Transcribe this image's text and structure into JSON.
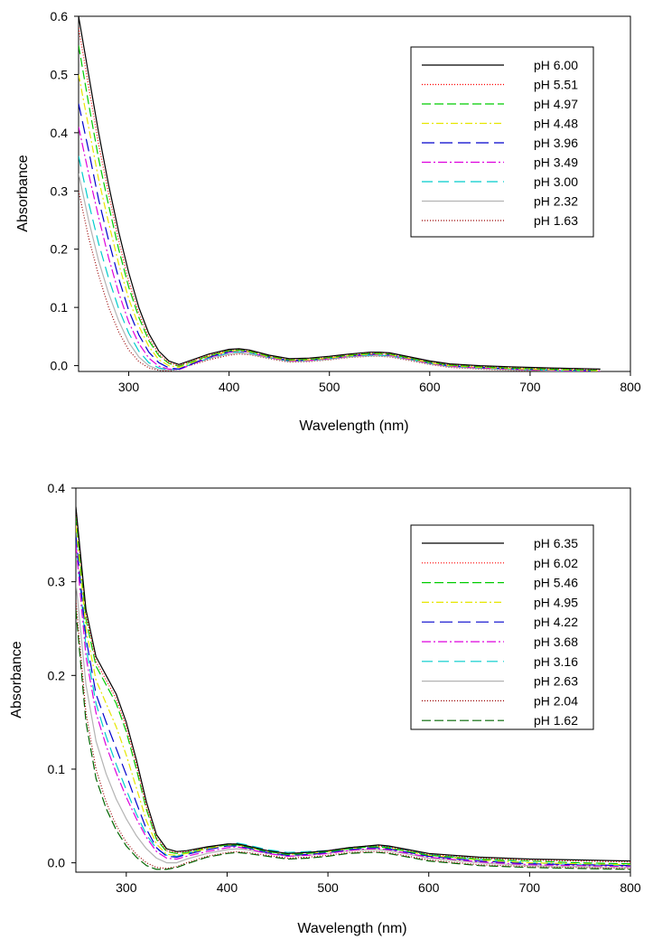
{
  "chart_data": [
    {
      "type": "line",
      "title": "",
      "xlabel": "Wavelength (nm)",
      "ylabel": "Absorbance",
      "xlim": [
        250,
        800
      ],
      "ylim": [
        -0.01,
        0.6
      ],
      "xticks": [
        300,
        400,
        500,
        600,
        700,
        800
      ],
      "yticks": [
        0.0,
        0.1,
        0.2,
        0.3,
        0.4,
        0.5,
        0.6
      ],
      "ytick_labels": [
        "0.0",
        "0.1",
        "0.2",
        "0.3",
        "0.4",
        "0.5",
        "0.6"
      ],
      "legend_position": "top-right",
      "x": [
        250,
        260,
        270,
        280,
        290,
        300,
        310,
        320,
        330,
        340,
        350,
        360,
        380,
        400,
        410,
        420,
        440,
        460,
        480,
        500,
        520,
        540,
        550,
        560,
        580,
        600,
        620,
        650,
        680,
        700,
        720,
        750,
        770
      ],
      "series": [
        {
          "name": "pH 6.00",
          "color": "#000000",
          "dash": "solid",
          "values": [
            0.6,
            0.5,
            0.4,
            0.31,
            0.23,
            0.16,
            0.1,
            0.055,
            0.025,
            0.008,
            0.002,
            0.008,
            0.02,
            0.028,
            0.029,
            0.027,
            0.018,
            0.012,
            0.013,
            0.016,
            0.02,
            0.023,
            0.023,
            0.022,
            0.015,
            0.008,
            0.003,
            0.0,
            -0.002,
            -0.003,
            -0.004,
            -0.005,
            -0.006
          ]
        },
        {
          "name": "pH 5.51",
          "color": "#ff0000",
          "dash": "1,2",
          "values": [
            0.58,
            0.48,
            0.38,
            0.295,
            0.215,
            0.145,
            0.09,
            0.048,
            0.02,
            0.005,
            0.0,
            0.006,
            0.018,
            0.027,
            0.028,
            0.026,
            0.017,
            0.011,
            0.012,
            0.015,
            0.019,
            0.022,
            0.022,
            0.021,
            0.014,
            0.007,
            0.002,
            -0.001,
            -0.003,
            -0.004,
            -0.005,
            -0.006,
            -0.007
          ]
        },
        {
          "name": "pH 4.97",
          "color": "#00cc00",
          "dash": "10,4",
          "values": [
            0.55,
            0.45,
            0.355,
            0.275,
            0.2,
            0.135,
            0.083,
            0.043,
            0.017,
            0.004,
            -0.001,
            0.005,
            0.017,
            0.026,
            0.027,
            0.025,
            0.016,
            0.01,
            0.011,
            0.014,
            0.018,
            0.021,
            0.021,
            0.02,
            0.013,
            0.006,
            0.001,
            -0.002,
            -0.004,
            -0.005,
            -0.006,
            -0.007,
            -0.008
          ]
        },
        {
          "name": "pH 4.48",
          "color": "#e6e600",
          "dash": "8,3,2,3",
          "values": [
            0.5,
            0.41,
            0.32,
            0.245,
            0.175,
            0.115,
            0.068,
            0.033,
            0.01,
            0.0,
            -0.003,
            0.003,
            0.016,
            0.025,
            0.026,
            0.024,
            0.015,
            0.009,
            0.01,
            0.013,
            0.017,
            0.02,
            0.02,
            0.019,
            0.012,
            0.005,
            0.0,
            -0.003,
            -0.005,
            -0.006,
            -0.007,
            -0.008,
            -0.009
          ]
        },
        {
          "name": "pH 3.96",
          "color": "#0000cc",
          "dash": "14,6",
          "values": [
            0.45,
            0.37,
            0.285,
            0.215,
            0.15,
            0.095,
            0.053,
            0.023,
            0.005,
            -0.004,
            -0.006,
            0.001,
            0.015,
            0.024,
            0.026,
            0.024,
            0.015,
            0.009,
            0.01,
            0.013,
            0.017,
            0.02,
            0.02,
            0.019,
            0.012,
            0.005,
            0.0,
            -0.003,
            -0.005,
            -0.006,
            -0.007,
            -0.008,
            -0.009
          ]
        },
        {
          "name": "pH 3.49",
          "color": "#dd00dd",
          "dash": "10,3,2,3",
          "values": [
            0.41,
            0.33,
            0.255,
            0.185,
            0.125,
            0.075,
            0.038,
            0.013,
            -0.001,
            -0.006,
            -0.007,
            0.0,
            0.014,
            0.023,
            0.025,
            0.023,
            0.014,
            0.008,
            0.009,
            0.012,
            0.016,
            0.019,
            0.019,
            0.018,
            0.011,
            0.004,
            -0.001,
            -0.004,
            -0.006,
            -0.007,
            -0.008,
            -0.009,
            -0.01
          ]
        },
        {
          "name": "pH 3.00",
          "color": "#00cccc",
          "dash": "12,6",
          "values": [
            0.36,
            0.28,
            0.21,
            0.15,
            0.098,
            0.056,
            0.025,
            0.005,
            -0.004,
            -0.007,
            -0.006,
            0.001,
            0.013,
            0.022,
            0.024,
            0.022,
            0.014,
            0.008,
            0.009,
            0.012,
            0.016,
            0.018,
            0.018,
            0.017,
            0.011,
            0.004,
            -0.001,
            -0.004,
            -0.006,
            -0.007,
            -0.008,
            -0.009,
            -0.01
          ]
        },
        {
          "name": "pH 2.32",
          "color": "#b3b3b3",
          "dash": "solid",
          "values": [
            0.33,
            0.25,
            0.18,
            0.124,
            0.077,
            0.04,
            0.015,
            0.0,
            -0.007,
            -0.008,
            -0.006,
            0.001,
            0.012,
            0.02,
            0.022,
            0.02,
            0.013,
            0.007,
            0.008,
            0.011,
            0.015,
            0.017,
            0.017,
            0.016,
            0.01,
            0.003,
            -0.002,
            -0.005,
            -0.007,
            -0.008,
            -0.009,
            -0.01,
            -0.01
          ]
        },
        {
          "name": "pH 1.63",
          "color": "#990000",
          "dash": "1,2",
          "values": [
            0.3,
            0.22,
            0.155,
            0.1,
            0.058,
            0.027,
            0.007,
            -0.004,
            -0.008,
            -0.009,
            -0.006,
            0.0,
            0.01,
            0.018,
            0.02,
            0.019,
            0.012,
            0.006,
            0.007,
            0.01,
            0.014,
            0.016,
            0.016,
            0.015,
            0.009,
            0.002,
            -0.003,
            -0.006,
            -0.008,
            -0.009,
            -0.01,
            -0.01,
            -0.01
          ]
        }
      ]
    },
    {
      "type": "line",
      "title": "",
      "xlabel": "Wavelength (nm)",
      "ylabel": "Absorbance",
      "xlim": [
        250,
        800
      ],
      "ylim": [
        -0.01,
        0.4
      ],
      "xticks": [
        300,
        400,
        500,
        600,
        700,
        800
      ],
      "yticks": [
        0.0,
        0.1,
        0.2,
        0.3,
        0.4
      ],
      "ytick_labels": [
        "0.0",
        "0.1",
        "0.2",
        "0.3",
        "0.4"
      ],
      "legend_position": "top-right",
      "x": [
        250,
        260,
        270,
        280,
        290,
        300,
        310,
        320,
        330,
        340,
        350,
        360,
        380,
        400,
        410,
        420,
        440,
        460,
        480,
        500,
        520,
        540,
        550,
        560,
        580,
        600,
        650,
        700,
        750,
        800
      ],
      "series": [
        {
          "name": "pH 6.35",
          "color": "#000000",
          "dash": "solid",
          "values": [
            0.38,
            0.27,
            0.22,
            0.2,
            0.18,
            0.15,
            0.11,
            0.065,
            0.03,
            0.015,
            0.012,
            0.013,
            0.017,
            0.02,
            0.02,
            0.018,
            0.013,
            0.01,
            0.011,
            0.013,
            0.016,
            0.018,
            0.019,
            0.018,
            0.014,
            0.01,
            0.006,
            0.004,
            0.003,
            0.002
          ]
        },
        {
          "name": "pH 6.02",
          "color": "#ff0000",
          "dash": "1,2",
          "values": [
            0.375,
            0.265,
            0.215,
            0.195,
            0.175,
            0.145,
            0.105,
            0.06,
            0.027,
            0.013,
            0.011,
            0.012,
            0.016,
            0.02,
            0.02,
            0.018,
            0.013,
            0.01,
            0.011,
            0.013,
            0.016,
            0.018,
            0.018,
            0.017,
            0.013,
            0.009,
            0.005,
            0.003,
            0.002,
            0.001
          ]
        },
        {
          "name": "pH 5.46",
          "color": "#00cc00",
          "dash": "10,4",
          "values": [
            0.37,
            0.26,
            0.21,
            0.19,
            0.17,
            0.14,
            0.1,
            0.057,
            0.025,
            0.012,
            0.01,
            0.011,
            0.016,
            0.019,
            0.019,
            0.017,
            0.012,
            0.009,
            0.01,
            0.012,
            0.015,
            0.017,
            0.017,
            0.016,
            0.012,
            0.008,
            0.004,
            0.002,
            0.0,
            -0.001
          ]
        },
        {
          "name": "pH 4.95",
          "color": "#e6e600",
          "dash": "8,3,2,3",
          "values": [
            0.36,
            0.25,
            0.195,
            0.17,
            0.145,
            0.115,
            0.08,
            0.045,
            0.02,
            0.009,
            0.008,
            0.01,
            0.015,
            0.019,
            0.019,
            0.017,
            0.012,
            0.009,
            0.01,
            0.012,
            0.015,
            0.017,
            0.017,
            0.016,
            0.012,
            0.008,
            0.003,
            0.0,
            -0.001,
            -0.002
          ]
        },
        {
          "name": "pH 4.22",
          "color": "#0000cc",
          "dash": "14,6",
          "values": [
            0.35,
            0.24,
            0.18,
            0.15,
            0.122,
            0.094,
            0.064,
            0.036,
            0.016,
            0.007,
            0.006,
            0.009,
            0.014,
            0.018,
            0.018,
            0.016,
            0.011,
            0.008,
            0.009,
            0.011,
            0.014,
            0.016,
            0.016,
            0.015,
            0.011,
            0.007,
            0.002,
            -0.001,
            -0.002,
            -0.003
          ]
        },
        {
          "name": "pH 3.68",
          "color": "#dd00dd",
          "dash": "10,3,2,3",
          "values": [
            0.34,
            0.22,
            0.16,
            0.125,
            0.096,
            0.07,
            0.047,
            0.027,
            0.012,
            0.005,
            0.004,
            0.007,
            0.012,
            0.016,
            0.017,
            0.015,
            0.01,
            0.007,
            0.008,
            0.01,
            0.013,
            0.015,
            0.015,
            0.014,
            0.01,
            0.006,
            0.001,
            -0.002,
            -0.003,
            -0.004
          ]
        },
        {
          "name": "pH 3.16",
          "color": "#00cccc",
          "dash": "12,6",
          "values": [
            0.345,
            0.23,
            0.17,
            0.135,
            0.105,
            0.078,
            0.052,
            0.03,
            0.015,
            0.008,
            0.007,
            0.01,
            0.016,
            0.02,
            0.021,
            0.019,
            0.014,
            0.011,
            0.012,
            0.013,
            0.016,
            0.018,
            0.018,
            0.017,
            0.013,
            0.009,
            0.004,
            0.0,
            -0.002,
            -0.003
          ]
        },
        {
          "name": "pH 2.63",
          "color": "#b3b3b3",
          "dash": "solid",
          "values": [
            0.3,
            0.19,
            0.13,
            0.095,
            0.068,
            0.047,
            0.029,
            0.015,
            0.005,
            0.0,
            0.0,
            0.004,
            0.01,
            0.014,
            0.015,
            0.014,
            0.01,
            0.007,
            0.008,
            0.01,
            0.013,
            0.014,
            0.014,
            0.013,
            0.009,
            0.005,
            0.0,
            -0.003,
            -0.004,
            -0.005
          ]
        },
        {
          "name": "pH 2.04",
          "color": "#990000",
          "dash": "1,2",
          "values": [
            0.28,
            0.16,
            0.1,
            0.065,
            0.04,
            0.022,
            0.009,
            0.0,
            -0.005,
            -0.006,
            -0.004,
            0.0,
            0.007,
            0.011,
            0.012,
            0.011,
            0.008,
            0.005,
            0.006,
            0.008,
            0.011,
            0.012,
            0.012,
            0.011,
            0.007,
            0.003,
            -0.002,
            -0.004,
            -0.005,
            -0.006
          ]
        },
        {
          "name": "pH 1.62",
          "color": "#006600",
          "dash": "10,4",
          "values": [
            0.27,
            0.15,
            0.09,
            0.058,
            0.035,
            0.018,
            0.006,
            -0.003,
            -0.007,
            -0.007,
            -0.005,
            -0.001,
            0.006,
            0.01,
            0.011,
            0.01,
            0.007,
            0.004,
            0.005,
            0.007,
            0.01,
            0.011,
            0.011,
            0.01,
            0.006,
            0.002,
            -0.003,
            -0.005,
            -0.006,
            -0.007
          ]
        }
      ]
    }
  ]
}
